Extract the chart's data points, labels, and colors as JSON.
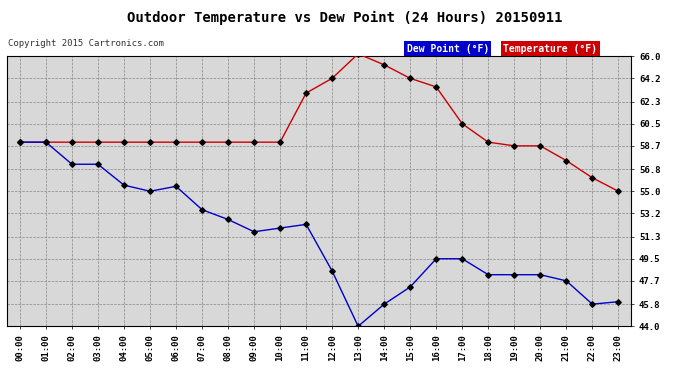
{
  "title": "Outdoor Temperature vs Dew Point (24 Hours) 20150911",
  "copyright": "Copyright 2015 Cartronics.com",
  "background_color": "#ffffff",
  "plot_background": "#d8d8d8",
  "grid_color": "#aaaaaa",
  "x_labels": [
    "00:00",
    "01:00",
    "02:00",
    "03:00",
    "04:00",
    "05:00",
    "06:00",
    "07:00",
    "08:00",
    "09:00",
    "10:00",
    "11:00",
    "12:00",
    "13:00",
    "14:00",
    "15:00",
    "16:00",
    "17:00",
    "18:00",
    "19:00",
    "20:00",
    "21:00",
    "22:00",
    "23:00"
  ],
  "temperature": [
    59.0,
    59.0,
    59.0,
    59.0,
    59.0,
    59.0,
    59.0,
    59.0,
    59.0,
    59.0,
    59.0,
    63.0,
    64.2,
    66.2,
    65.3,
    64.2,
    63.5,
    60.5,
    59.0,
    58.7,
    58.7,
    57.5,
    56.1,
    55.0
  ],
  "dew_point": [
    59.0,
    59.0,
    57.2,
    57.2,
    55.5,
    55.0,
    55.4,
    53.5,
    52.7,
    51.7,
    52.0,
    52.3,
    48.5,
    44.0,
    45.8,
    47.2,
    49.5,
    49.5,
    48.2,
    48.2,
    48.2,
    47.7,
    45.8,
    46.0
  ],
  "temp_color": "#cc0000",
  "dew_color": "#0000cc",
  "marker_color": "#000000",
  "ylim_min": 44.0,
  "ylim_max": 66.0,
  "yticks": [
    44.0,
    45.8,
    47.7,
    49.5,
    51.3,
    53.2,
    55.0,
    56.8,
    58.7,
    60.5,
    62.3,
    64.2,
    66.0
  ],
  "legend_dew_label": "Dew Point (°F)",
  "legend_temp_label": "Temperature (°F)",
  "legend_dew_bg": "#0000cc",
  "legend_temp_bg": "#cc0000",
  "legend_text_color": "#ffffff"
}
